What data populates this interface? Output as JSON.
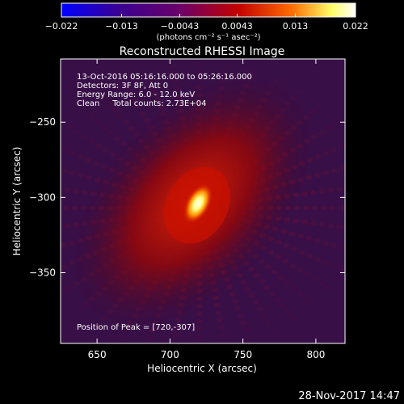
{
  "chart_data": {
    "type": "heatmap",
    "title": "Reconstructed RHESSI Image",
    "xlabel": "Heliocentric X (arcsec)",
    "ylabel": "Heliocentric Y (arcsec)",
    "x_range": [
      625,
      820
    ],
    "y_range": [
      -397,
      -208
    ],
    "x_ticks": [
      650,
      700,
      750,
      800
    ],
    "x_tick_labels": [
      "650",
      "700",
      "750",
      "800"
    ],
    "y_ticks": [
      -250,
      -300,
      -350
    ],
    "y_tick_labels": [
      "−250",
      "−300",
      "−350"
    ],
    "colorbar": {
      "range": [
        -0.022,
        0.022
      ],
      "ticks": [
        -0.022,
        -0.013,
        -0.0043,
        0.0043,
        0.013,
        0.022
      ],
      "tick_labels": [
        "−0.022",
        "−0.013",
        "−0.0043",
        "0.0043",
        "0.013",
        "0.022"
      ],
      "unit": "(photons cm⁻² s⁻¹ asec⁻²)",
      "colors": [
        "#0000ff",
        "#3b0090",
        "#6a006a",
        "#c20000",
        "#ff6a00",
        "#ffff6a",
        "#ffffff"
      ]
    },
    "peak": {
      "x": 720,
      "y": -307
    },
    "annotations": [
      "13-Oct-2016 05:16:16.000 to 05:26:16.000",
      "Detectors: 3F 8F, Att 0",
      "Energy Range: 6.0 - 12.0 keV",
      "Clean     Total counts: 2.73E+04",
      "Position of Peak = [720,-307]"
    ],
    "footer_timestamp": "28-Nov-2017 14:47"
  }
}
